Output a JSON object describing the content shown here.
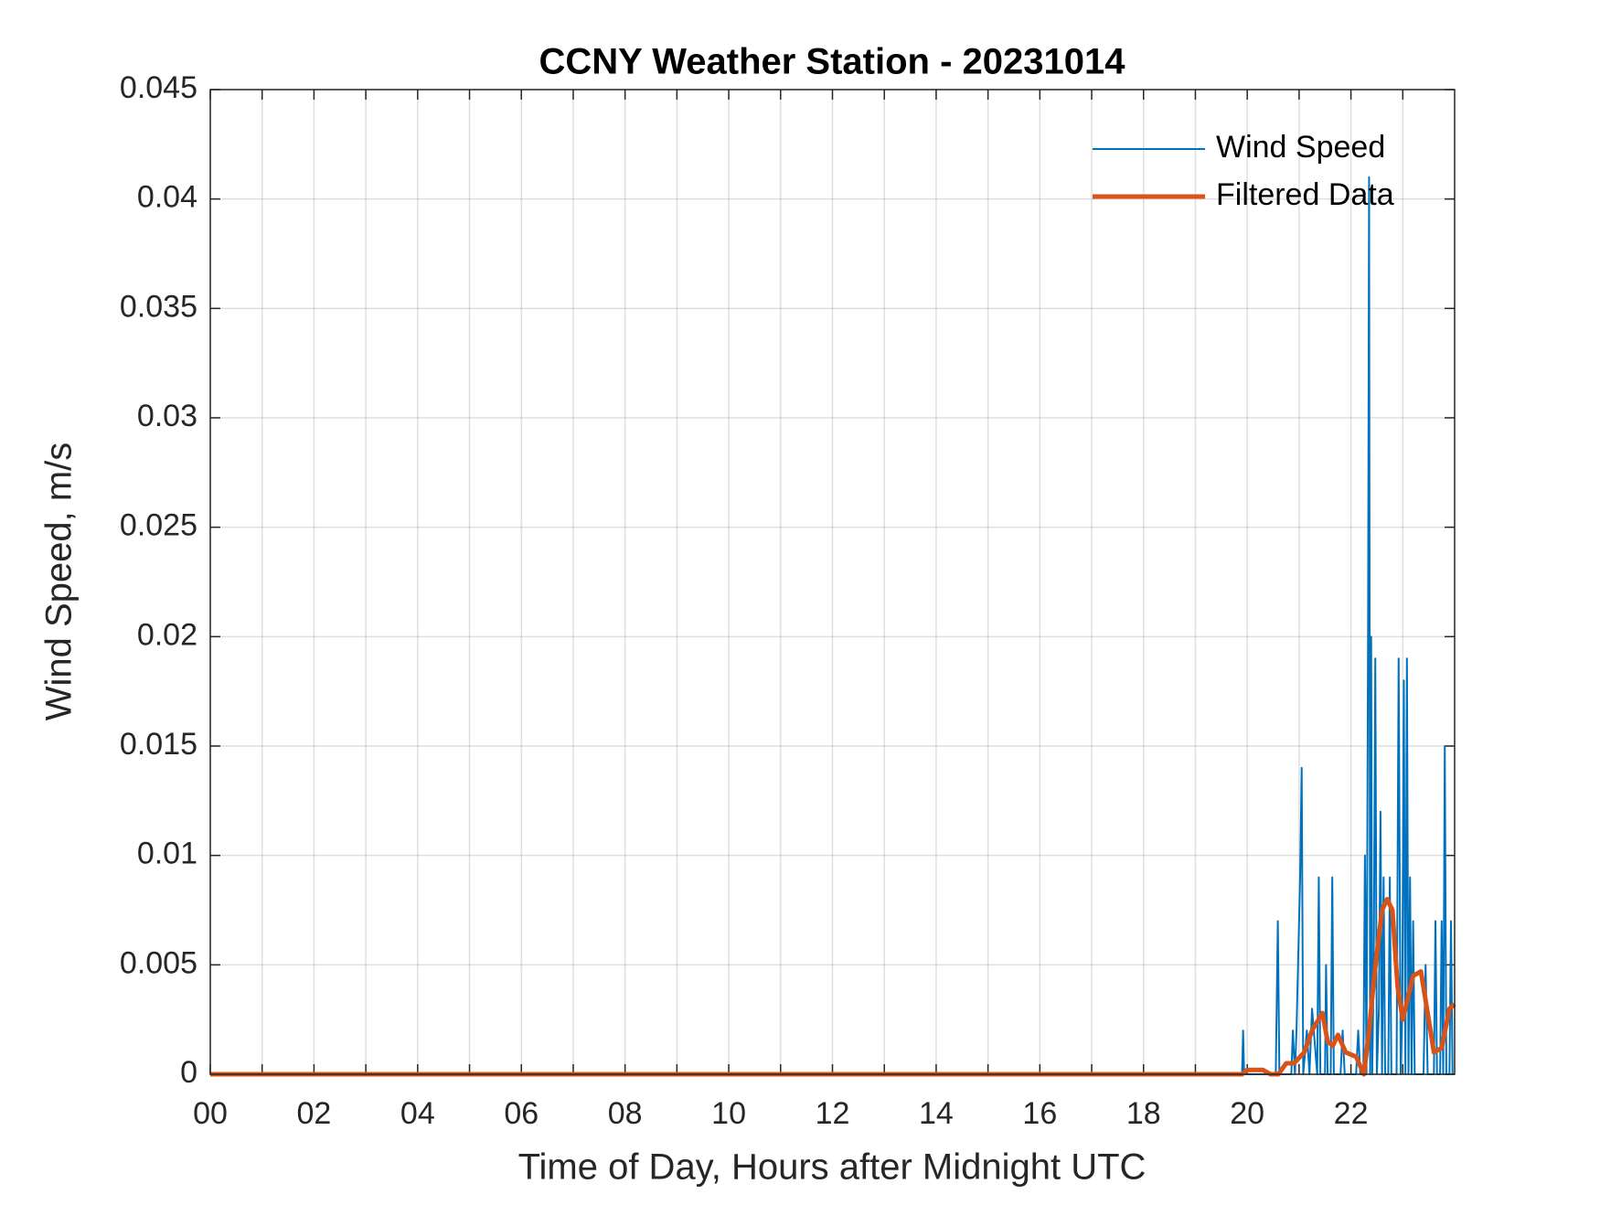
{
  "chart_data": {
    "type": "line",
    "title": "CCNY Weather Station - 20231014",
    "xlabel": "Time of Day, Hours after Midnight UTC",
    "ylabel": "Wind Speed, m/s",
    "xlim": [
      0,
      24
    ],
    "ylim": [
      0,
      0.045
    ],
    "xticks": [
      {
        "value": 0,
        "label": "00"
      },
      {
        "value": 2,
        "label": "02"
      },
      {
        "value": 4,
        "label": "04"
      },
      {
        "value": 6,
        "label": "06"
      },
      {
        "value": 8,
        "label": "08"
      },
      10,
      12,
      14,
      16,
      18,
      20,
      22
    ],
    "xminorticks": [
      1,
      3,
      5,
      7,
      9,
      11,
      13,
      15,
      17,
      19,
      21,
      23
    ],
    "yticks": [
      0,
      0.005,
      0.01,
      0.015,
      0.02,
      0.025,
      0.03,
      0.035,
      0.04,
      0.045
    ],
    "grid": true,
    "legend": "upper right",
    "series": [
      {
        "name": "Wind Speed",
        "color": "#0072bd",
        "x": [
          0,
          19.9,
          19.92,
          19.94,
          20.55,
          20.59,
          20.62,
          20.85,
          20.88,
          20.92,
          20.95,
          21.02,
          21.05,
          21.08,
          21.15,
          21.2,
          21.25,
          21.35,
          21.38,
          21.41,
          21.5,
          21.52,
          21.55,
          21.61,
          21.64,
          21.67,
          21.8,
          21.84,
          21.88,
          22.1,
          22.14,
          22.18,
          22.24,
          22.27,
          22.3,
          22.33,
          22.35,
          22.37,
          22.39,
          22.41,
          22.44,
          22.47,
          22.5,
          22.54,
          22.57,
          22.6,
          22.63,
          22.66,
          22.72,
          22.75,
          22.78,
          22.88,
          22.92,
          22.96,
          22.99,
          23.02,
          23.05,
          23.08,
          23.11,
          23.14,
          23.17,
          23.2,
          23.23,
          23.4,
          23.44,
          23.48,
          23.6,
          23.63,
          23.66,
          23.72,
          23.75,
          23.78,
          23.81,
          23.84,
          23.9,
          23.93,
          23.96,
          24
        ],
        "values": [
          0,
          0,
          0.002,
          0,
          0,
          0.007,
          0,
          0,
          0.002,
          0,
          0.002,
          0.009,
          0.014,
          0,
          0.002,
          0,
          0.003,
          0,
          0.009,
          0,
          0,
          0.005,
          0,
          0,
          0.009,
          0,
          0,
          0.002,
          0,
          0,
          0.002,
          0,
          0,
          0.01,
          0,
          0.02,
          0.041,
          0,
          0.02,
          0,
          0.005,
          0.019,
          0,
          0.003,
          0.012,
          0,
          0.009,
          0,
          0,
          0.009,
          0,
          0,
          0.019,
          0,
          0.003,
          0.018,
          0,
          0.019,
          0,
          0.009,
          0,
          0.007,
          0,
          0,
          0.005,
          0,
          0,
          0.007,
          0,
          0,
          0.007,
          0,
          0.015,
          0,
          0,
          0.007,
          0,
          0
        ]
      },
      {
        "name": "Filtered Data",
        "color": "#d95319",
        "x": [
          0,
          19.9,
          20.0,
          20.3,
          20.45,
          20.6,
          20.75,
          20.9,
          21.1,
          21.25,
          21.45,
          21.55,
          21.65,
          21.75,
          21.9,
          22.1,
          22.25,
          22.35,
          22.45,
          22.6,
          22.7,
          22.8,
          22.9,
          23.0,
          23.1,
          23.2,
          23.35,
          23.5,
          23.6,
          23.75,
          23.9,
          24
        ],
        "values": [
          0,
          0,
          0.0002,
          0.0002,
          0,
          0,
          0.0005,
          0.0005,
          0.001,
          0.002,
          0.0028,
          0.0015,
          0.0013,
          0.0018,
          0.001,
          0.0008,
          0,
          0.002,
          0.0045,
          0.0075,
          0.008,
          0.0075,
          0.004,
          0.0025,
          0.0035,
          0.0045,
          0.0047,
          0.0025,
          0.001,
          0.0012,
          0.003,
          0.0032
        ]
      }
    ]
  }
}
